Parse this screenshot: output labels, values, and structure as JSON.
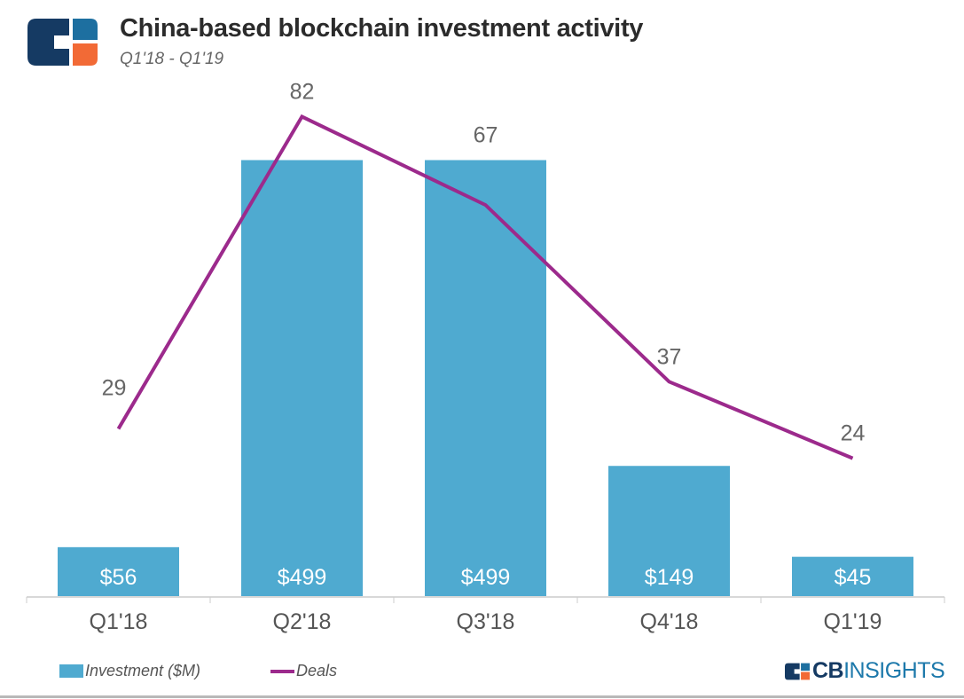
{
  "header": {
    "title": "China-based blockchain investment activity",
    "subtitle": "Q1'18 - Q1'19",
    "logo_text": "CB Insights"
  },
  "colors": {
    "investment": "#4faad0",
    "deals": "#9c2a8c",
    "logo_navy": "#153a63",
    "logo_blue": "#1d6fa0",
    "logo_orange": "#f26a36"
  },
  "chart_data": {
    "type": "bar+line",
    "categories": [
      "Q1'18",
      "Q2'18",
      "Q3'18",
      "Q4'18",
      "Q1'19"
    ],
    "series": [
      {
        "name": "Investment ($M)",
        "type": "bar",
        "values": [
          56,
          499,
          499,
          149,
          45
        ],
        "labels": [
          "$56",
          "$499",
          "$499",
          "$149",
          "$45"
        ]
      },
      {
        "name": "Deals",
        "type": "line",
        "values": [
          29,
          82,
          67,
          37,
          24
        ],
        "labels": [
          "29",
          "82",
          "67",
          "37",
          "24"
        ]
      }
    ],
    "legend": "bottom-left",
    "grid": false
  },
  "legend": {
    "investment": "Investment ($M)",
    "deals": "Deals"
  },
  "brand": {
    "cb": "CB",
    "insights": "INSIGHTS"
  }
}
